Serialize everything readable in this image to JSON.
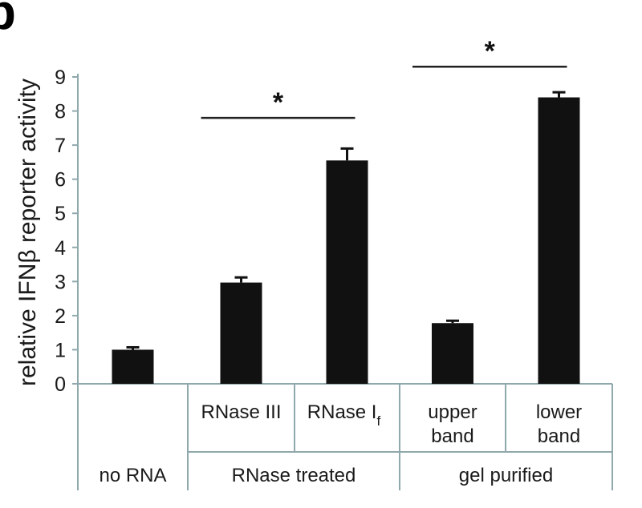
{
  "panel_label": "b",
  "chart_data": {
    "type": "bar",
    "ylabel": "relative IFNβ reporter activity",
    "ylim": [
      0,
      9
    ],
    "yticks": [
      0,
      1,
      2,
      3,
      4,
      5,
      6,
      7,
      8,
      9
    ],
    "categories": [
      {
        "label": "no RNA",
        "lines": [
          "no RNA"
        ],
        "value": 1.0,
        "error": 0.07
      },
      {
        "label": "RNase III",
        "lines": [
          "RNase III"
        ],
        "value": 2.97,
        "error": 0.15
      },
      {
        "label": "RNase If",
        "lines": [
          "RNase I",
          "f"
        ],
        "value": 6.55,
        "error": 0.35
      },
      {
        "label": "upper band",
        "lines": [
          "upper",
          "band"
        ],
        "value": 1.78,
        "error": 0.07
      },
      {
        "label": "lower band",
        "lines": [
          "lower",
          "band"
        ],
        "value": 8.4,
        "error": 0.15
      }
    ],
    "groups": [
      {
        "label": "no RNA",
        "members": [
          0
        ]
      },
      {
        "label": "RNase treated",
        "members": [
          1,
          2
        ]
      },
      {
        "label": "gel purified",
        "members": [
          3,
          4
        ]
      }
    ],
    "significance": [
      {
        "from": 1,
        "to": 2,
        "y": 7.8,
        "label": "*"
      },
      {
        "from": 3,
        "to": 4,
        "y": 9.3,
        "label": "*"
      }
    ],
    "colors": {
      "bar": "#111111",
      "axis": "#8fa8ac",
      "text": "#1a1a1a"
    }
  }
}
